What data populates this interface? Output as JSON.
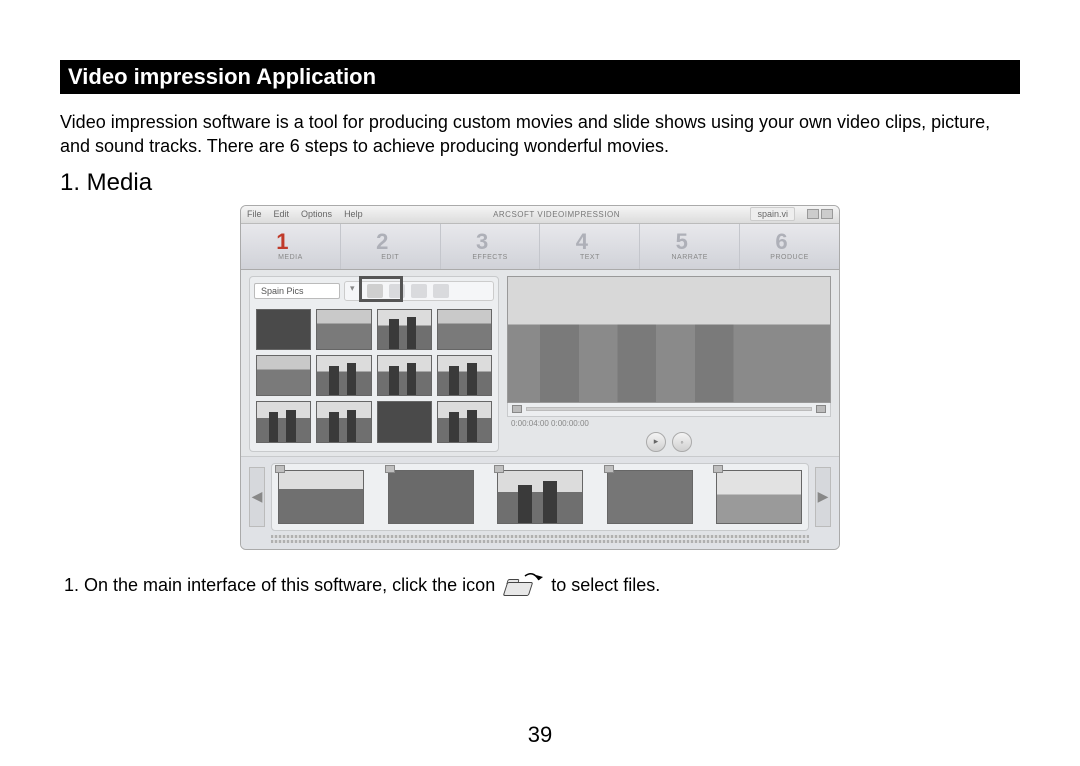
{
  "page": {
    "title": "Video impression Application",
    "intro": "Video impression software is a tool for producing custom movies and slide shows using your own video clips, picture, and sound tracks. There are 6 steps to achieve producing wonderful movies.",
    "subhead": "1. Media",
    "instruction_pre": "1. On the main interface of this software, click the icon",
    "instruction_post": "to select files.",
    "page_number": "39"
  },
  "app": {
    "menu": {
      "items": [
        "File",
        "Edit",
        "Options",
        "Help"
      ],
      "brand": "ARCSOFT VIDEOIMPRESSION",
      "project": "spain.vi"
    },
    "steps": [
      {
        "num": "1",
        "label": "MEDIA",
        "active": true
      },
      {
        "num": "2",
        "label": "EDIT",
        "active": false
      },
      {
        "num": "3",
        "label": "EFFECTS",
        "active": false
      },
      {
        "num": "4",
        "label": "TEXT",
        "active": false
      },
      {
        "num": "5",
        "label": "NARRATE",
        "active": false
      },
      {
        "num": "6",
        "label": "PRODUCE",
        "active": false
      }
    ],
    "album_name": "Spain Pics",
    "thumb_styles": [
      "dark",
      "castle",
      "towers",
      "castle",
      "castle",
      "towers",
      "towers",
      "towers",
      "towers",
      "towers",
      "dark",
      "towers"
    ],
    "timecode": "0:00:04:00  0:00:00:00",
    "clip_styles": [
      "c1",
      "c2",
      "c3",
      "c4",
      "c5"
    ],
    "colors": {
      "frame_bg": "#e4e6e8",
      "panel_bg": "#eceef0",
      "active_step": "#c03a2a",
      "inactive_step": "#aeb0b8",
      "border": "#c8cacc"
    }
  }
}
